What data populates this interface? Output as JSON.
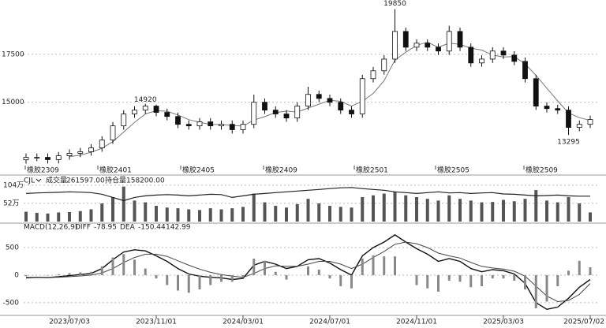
{
  "chart_data": [
    {
      "type": "candlestick",
      "open": [
        12000,
        12130,
        12130,
        12010,
        12210,
        12340,
        12420,
        12620,
        13030,
        13770,
        14390,
        14590,
        14800,
        14470,
        14260,
        13850,
        13770,
        13980,
        13770,
        13850,
        13570,
        13850,
        15000,
        14590,
        14390,
        14180,
        14800,
        15410,
        15200,
        15000,
        14590,
        14390,
        16230,
        16640,
        17250,
        18690,
        17870,
        18080,
        17870,
        17670,
        18690,
        17870,
        17050,
        17250,
        17670,
        17460,
        17130,
        16230,
        14800,
        14670,
        14590,
        13690,
        13850
      ],
      "high": [
        12330,
        12330,
        12330,
        12410,
        12540,
        12620,
        12820,
        13230,
        13970,
        14590,
        14790,
        14920,
        14880,
        14670,
        14460,
        14050,
        14180,
        14180,
        14050,
        14050,
        14050,
        15400,
        15200,
        14790,
        14590,
        15000,
        15810,
        15610,
        15400,
        15200,
        14790,
        16430,
        16840,
        17450,
        19850,
        18890,
        18280,
        18280,
        18070,
        18990,
        18890,
        18070,
        17450,
        17870,
        17870,
        17660,
        17330,
        16430,
        15000,
        14870,
        14790,
        14050,
        14300
      ],
      "low": [
        11800,
        11930,
        11810,
        11810,
        12010,
        12140,
        12220,
        12420,
        12830,
        13570,
        14190,
        14390,
        14270,
        14060,
        13650,
        13570,
        13570,
        13570,
        13570,
        13370,
        13370,
        13650,
        14390,
        14190,
        13980,
        13980,
        14600,
        15000,
        14800,
        14390,
        14190,
        14190,
        16030,
        16440,
        17050,
        17670,
        17670,
        17670,
        17470,
        17470,
        17670,
        16850,
        16850,
        17050,
        17260,
        16930,
        16030,
        14600,
        14470,
        14390,
        13295,
        13490,
        13650
      ],
      "close": [
        12130,
        12130,
        12010,
        12210,
        12340,
        12420,
        12620,
        13030,
        13770,
        14390,
        14590,
        14800,
        14470,
        14260,
        13850,
        13770,
        13980,
        13770,
        13850,
        13570,
        13850,
        15000,
        14590,
        14390,
        14180,
        14800,
        15410,
        15200,
        15000,
        14590,
        14390,
        16230,
        16640,
        17250,
        18690,
        17870,
        18080,
        17870,
        17670,
        18690,
        17870,
        17050,
        17250,
        17670,
        17460,
        17130,
        16230,
        14800,
        14670,
        14590,
        13690,
        13850,
        14100
      ],
      "ma": [
        null,
        null,
        null,
        null,
        12170,
        12240,
        12400,
        12600,
        12950,
        13450,
        13950,
        14390,
        14560,
        14530,
        14340,
        14090,
        13960,
        13840,
        13840,
        13790,
        13760,
        14070,
        14250,
        14460,
        14540,
        14490,
        14700,
        14900,
        15100,
        15050,
        14800,
        15050,
        15460,
        16130,
        17200,
        17610,
        17970,
        18130,
        17870,
        18080,
        18020,
        17820,
        17720,
        17460,
        17360,
        17380,
        17000,
        16400,
        15730,
        15070,
        14440,
        14200,
        14050
      ],
      "ylim": [
        11700,
        20330
      ],
      "yticks": [
        15000,
        17500
      ],
      "contracts": [
        "橡胶2309",
        "橡胶2401",
        "橡胶2405",
        "橡胶2409",
        "橡胶2501",
        "橡胶2505",
        "橡胶2509"
      ]
    },
    {
      "type": "volume",
      "title": "CJL",
      "series": [
        {
          "name": "成交量",
          "color": "#555555",
          "header_value": "261597.00",
          "values": [
            280000,
            250000,
            230000,
            260000,
            270000,
            300000,
            350000,
            520000,
            700000,
            1000000,
            600000,
            550000,
            450000,
            400000,
            380000,
            350000,
            330000,
            380000,
            350000,
            380000,
            420000,
            800000,
            550000,
            450000,
            400000,
            500000,
            650000,
            520000,
            450000,
            420000,
            400000,
            700000,
            750000,
            800000,
            850000,
            750000,
            700000,
            650000,
            600000,
            750000,
            650000,
            600000,
            550000,
            560000,
            620000,
            580000,
            650000,
            900000,
            600000,
            550000,
            700000,
            520000,
            261597
          ]
        },
        {
          "name": "持仓量",
          "color": "#222222",
          "axis": "y2",
          "header_value": "158200.00",
          "values": [
            175000,
            178000,
            180000,
            182000,
            185000,
            183000,
            180000,
            170000,
            150000,
            130000,
            150000,
            160000,
            165000,
            168000,
            165000,
            160000,
            165000,
            170000,
            168000,
            150000,
            160000,
            170000,
            175000,
            180000,
            185000,
            190000,
            195000,
            200000,
            205000,
            210000,
            212000,
            205000,
            200000,
            195000,
            185000,
            180000,
            175000,
            180000,
            185000,
            178000,
            180000,
            175000,
            178000,
            180000,
            172000,
            170000,
            165000,
            160000,
            162000,
            165000,
            160000,
            158000,
            158200
          ]
        }
      ],
      "ylim": [
        0,
        1240000
      ],
      "yticks": [
        {
          "value": 520000,
          "label": "52万"
        },
        {
          "value": 1040000,
          "label": "104万"
        }
      ],
      "y2lim": [
        0,
        270000
      ]
    },
    {
      "type": "macd",
      "title": "MACD(12,26,9)",
      "series": [
        {
          "name": "DIFF",
          "color": "#111111",
          "values": [
            -50,
            -40,
            -45,
            -30,
            -10,
            10,
            30,
            120,
            280,
            420,
            460,
            440,
            350,
            250,
            120,
            20,
            -20,
            -40,
            -50,
            -80,
            -60,
            180,
            250,
            200,
            120,
            160,
            280,
            300,
            220,
            100,
            0,
            350,
            500,
            600,
            730,
            600,
            480,
            380,
            250,
            300,
            250,
            120,
            60,
            100,
            80,
            20,
            -150,
            -500,
            -620,
            -580,
            -420,
            -220,
            -78.95
          ]
        },
        {
          "name": "DEA",
          "color": "#444444",
          "values": [
            -40,
            -40,
            -42,
            -38,
            -28,
            -15,
            0,
            40,
            120,
            230,
            320,
            380,
            380,
            340,
            260,
            180,
            110,
            50,
            10,
            -20,
            -40,
            30,
            120,
            170,
            160,
            160,
            200,
            250,
            250,
            200,
            120,
            200,
            320,
            430,
            560,
            600,
            570,
            500,
            400,
            350,
            310,
            230,
            160,
            130,
            110,
            70,
            -20,
            -200,
            -380,
            -480,
            -460,
            -350,
            -150.44
          ]
        },
        {
          "color": "#888888",
          "values": [
            -20,
            0,
            -6,
            16,
            36,
            50,
            60,
            160,
            320,
            380,
            280,
            120,
            -60,
            -180,
            -280,
            -320,
            -260,
            -180,
            -120,
            -120,
            -40,
            300,
            260,
            60,
            -80,
            0,
            160,
            100,
            -60,
            -200,
            -240,
            300,
            360,
            340,
            340,
            0,
            -180,
            -240,
            -300,
            -100,
            -120,
            -220,
            -200,
            -60,
            -60,
            -100,
            -260,
            -600,
            -480,
            -200,
            80,
            260,
            142.99
          ]
        }
      ],
      "ylim": [
        -730,
        757
      ],
      "yticks": [
        -500,
        0,
        500
      ],
      "categories": [
        null,
        null,
        null,
        null,
        "2023/07/03",
        null,
        null,
        null,
        null,
        null,
        null,
        null,
        "2023/11/01",
        null,
        null,
        null,
        null,
        null,
        null,
        null,
        "2024/03/01",
        null,
        null,
        null,
        null,
        null,
        null,
        null,
        "2024/07/01",
        null,
        null,
        null,
        null,
        null,
        null,
        null,
        "2024/11/01",
        null,
        null,
        null,
        null,
        null,
        null,
        null,
        "2025/03/03",
        null,
        null,
        null,
        null,
        null,
        null,
        null,
        "2025/07/02"
      ]
    }
  ]
}
